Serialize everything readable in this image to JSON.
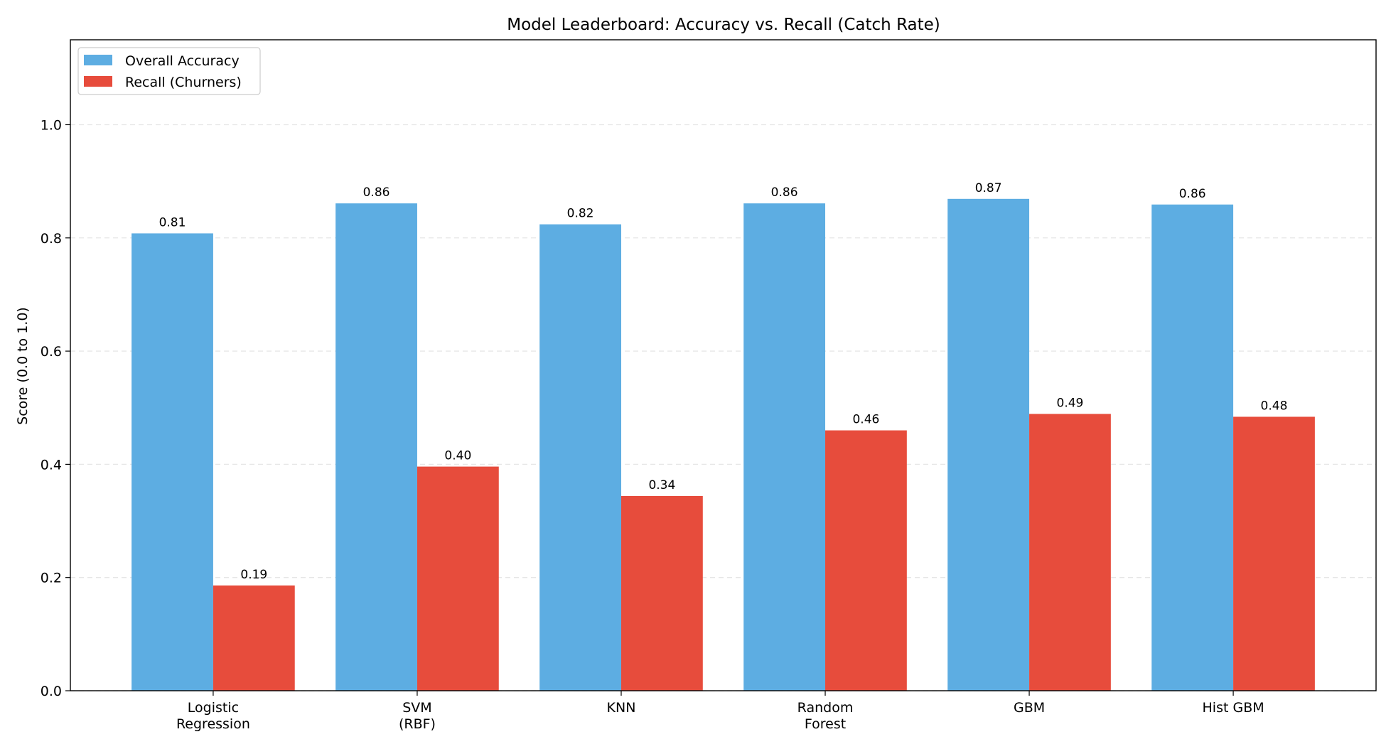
{
  "chart_data": {
    "type": "bar",
    "title": "Model Leaderboard: Accuracy vs. Recall (Catch Rate)",
    "xlabel": "",
    "ylabel": "Score (0.0 to 1.0)",
    "ylim": [
      0,
      1.15
    ],
    "yticks": [
      0.0,
      0.2,
      0.4,
      0.6,
      0.8,
      1.0
    ],
    "ytick_labels": [
      "0.0",
      "0.2",
      "0.4",
      "0.6",
      "0.8",
      "1.0"
    ],
    "grid": true,
    "legend_position": "top-left",
    "categories": [
      [
        "Logistic",
        "Regression"
      ],
      [
        "SVM",
        "(RBF)"
      ],
      [
        "KNN"
      ],
      [
        "Random",
        "Forest"
      ],
      [
        "GBM"
      ],
      [
        "Hist GBM"
      ]
    ],
    "series": [
      {
        "name": "Overall Accuracy",
        "color": "#5DADE2",
        "values": [
          0.808,
          0.861,
          0.824,
          0.861,
          0.869,
          0.859
        ],
        "labels": [
          "0.81",
          "0.86",
          "0.82",
          "0.86",
          "0.87",
          "0.86"
        ]
      },
      {
        "name": "Recall (Churners)",
        "color": "#E74C3C",
        "values": [
          0.186,
          0.396,
          0.344,
          0.46,
          0.489,
          0.484
        ],
        "labels": [
          "0.19",
          "0.40",
          "0.34",
          "0.46",
          "0.49",
          "0.48"
        ]
      }
    ]
  }
}
